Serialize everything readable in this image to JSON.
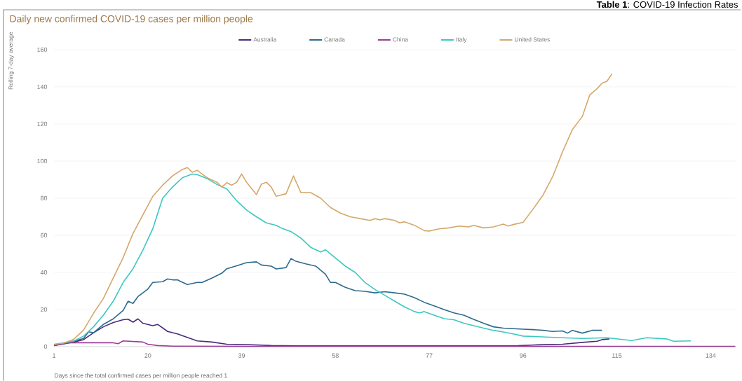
{
  "chart_data": {
    "type": "line",
    "title": "Daily new confirmed COVID-19 cases per million people",
    "xlabel": "Days since the total confirmed cases per million people reached 1",
    "ylabel": "Rolling 7-day average",
    "annotations": [
      "**Table 1**: COVID-19 Infection Rates"
    ],
    "xlim": [
      1,
      139
    ],
    "ylim": [
      0,
      160
    ],
    "xticks": [
      1,
      20,
      39,
      58,
      77,
      96,
      115,
      134
    ],
    "yticks": [
      0,
      20,
      40,
      60,
      80,
      100,
      120,
      140,
      160
    ],
    "grid": "y",
    "legend": "top",
    "series": [
      {
        "name": "Australia",
        "color": "#4b2a7d",
        "x": [
          1,
          5,
          7,
          9,
          11,
          13,
          15,
          16,
          17,
          18,
          19,
          21,
          22,
          24,
          26,
          28,
          30,
          33,
          36,
          40,
          45,
          50,
          60,
          80,
          95,
          99,
          104,
          108,
          111,
          112,
          113.5
        ],
        "values": [
          0.6,
          2.5,
          3.8,
          7.5,
          10.7,
          13,
          14.5,
          14.8,
          13.2,
          15,
          12.6,
          11.3,
          12,
          8.2,
          6.9,
          5,
          3.1,
          2.5,
          1.3,
          1.1,
          0.6,
          0.4,
          0.4,
          0.4,
          0.5,
          1,
          1.3,
          2.3,
          2.9,
          3.8,
          4.2
        ]
      },
      {
        "name": "Canada",
        "color": "#2e6a8e",
        "x": [
          1,
          5,
          7,
          8,
          9,
          11,
          13,
          15,
          16,
          17,
          18,
          20,
          21,
          23,
          24,
          25,
          26,
          28,
          30,
          31,
          33,
          35,
          36,
          38,
          40,
          42,
          43,
          45,
          46,
          48,
          49,
          50,
          52,
          54,
          56,
          57,
          58,
          60,
          62,
          64,
          66,
          68,
          70,
          72,
          74,
          76,
          78,
          80,
          82,
          84,
          86,
          88,
          90,
          92,
          94,
          96,
          98,
          100,
          102,
          104,
          105,
          106,
          108,
          110,
          112
        ],
        "values": [
          0.6,
          3,
          4.4,
          8,
          7.5,
          12,
          15,
          19.5,
          24.5,
          23.3,
          27,
          31,
          34.6,
          35,
          36.5,
          36,
          36,
          33.5,
          34.6,
          34.6,
          37,
          39.6,
          42,
          43.6,
          45.3,
          45.7,
          44,
          43.4,
          41.9,
          42.6,
          47.5,
          46,
          44.6,
          43.4,
          39,
          34.6,
          34.6,
          32,
          30.2,
          29.8,
          29,
          29.6,
          29,
          28.3,
          26.4,
          23.9,
          22,
          20,
          18.2,
          17,
          14.7,
          12.6,
          10.7,
          10,
          9.7,
          9.4,
          9.2,
          8.8,
          8.2,
          8.5,
          7.3,
          8.8,
          7.3,
          8.8,
          8.8
        ]
      },
      {
        "name": "China",
        "color": "#9b3d97",
        "x": [
          1,
          4,
          8,
          13,
          14,
          15,
          19,
          20,
          22,
          25,
          40,
          60,
          80,
          100,
          120,
          139
        ],
        "values": [
          0.8,
          2.1,
          2.1,
          2.1,
          1.6,
          3.1,
          2.5,
          1.3,
          0.6,
          0.3,
          0.2,
          0.2,
          0.2,
          0.2,
          0.2,
          0.2
        ]
      },
      {
        "name": "Italy",
        "color": "#3cc8c0",
        "x": [
          1,
          5,
          7,
          9,
          11,
          13,
          15,
          17,
          19,
          21,
          23,
          25,
          27,
          29,
          30,
          32,
          34,
          36,
          38,
          40,
          42,
          44,
          46,
          47,
          49,
          51,
          53,
          55,
          56,
          58,
          60,
          62,
          64,
          66,
          68,
          70,
          72,
          74,
          75,
          76,
          78,
          80,
          82,
          84,
          86,
          88,
          90,
          92,
          94,
          96,
          99,
          104,
          108,
          113,
          118,
          121,
          125,
          126.5,
          130
        ],
        "values": [
          1.2,
          3,
          5.7,
          10.7,
          17,
          24.5,
          34.6,
          42,
          52,
          63.5,
          80,
          86,
          91,
          93,
          92.7,
          90.6,
          87.4,
          85,
          78.6,
          73.6,
          70,
          66.7,
          65.4,
          64,
          62,
          58.5,
          53.5,
          51,
          52.2,
          47.8,
          43.4,
          40,
          34.6,
          30.8,
          27.7,
          24.5,
          21.4,
          18.9,
          18.2,
          18.9,
          17,
          15.1,
          14.5,
          12.6,
          11.3,
          10,
          8.8,
          7.9,
          6.9,
          5.7,
          5.4,
          4.8,
          4.4,
          4.8,
          3.3,
          4.8,
          4.2,
          2.9,
          3.1
        ]
      },
      {
        "name": "United States",
        "color": "#d4a86a",
        "x": [
          1,
          3,
          5,
          7,
          9,
          11,
          13,
          15,
          17,
          19,
          21,
          23,
          25,
          27,
          28,
          29,
          30,
          32,
          34,
          35,
          36,
          37,
          38,
          39,
          40,
          42,
          43,
          44,
          45,
          46,
          48,
          49.5,
          51,
          53,
          55,
          57,
          59,
          61,
          63,
          65,
          66,
          67,
          68,
          70,
          71,
          72,
          74,
          76,
          77,
          79,
          81,
          83,
          85,
          86,
          88,
          90,
          92,
          93,
          94,
          96,
          98,
          100,
          102,
          104,
          106,
          108,
          109.5,
          111,
          112,
          113,
          114
        ],
        "values": [
          1.2,
          2,
          4,
          9,
          18,
          26,
          37,
          48,
          61,
          71,
          81,
          87,
          92,
          95.5,
          96.5,
          94,
          95,
          91,
          88.6,
          86,
          88.4,
          87,
          88.6,
          93,
          88.6,
          82,
          87.5,
          88.6,
          86,
          81,
          82.4,
          92,
          83,
          83,
          80,
          75,
          72,
          70,
          69,
          68,
          69,
          68.3,
          69,
          68,
          66.7,
          67.3,
          65.4,
          62.5,
          62.3,
          63.5,
          64,
          65,
          64.5,
          65.4,
          64,
          64.5,
          66,
          65,
          65.8,
          67,
          74,
          81.5,
          91.6,
          105,
          117,
          124,
          135.6,
          139,
          142,
          143,
          147
        ]
      }
    ]
  }
}
